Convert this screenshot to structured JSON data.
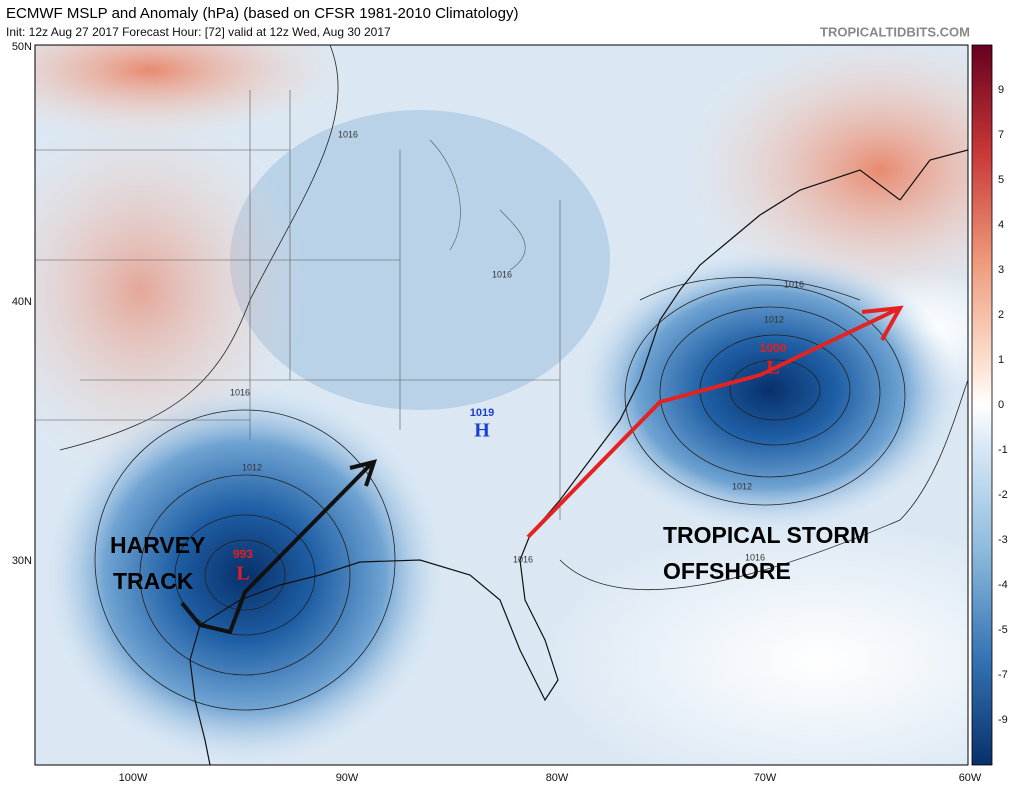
{
  "header": {
    "title": "ECMWF MSLP and Anomaly (hPa) (based on CFSR 1981-2010 Climatology)",
    "subtitle": "Init: 12z Aug 27 2017   Forecast Hour: [72]   valid at 12z Wed, Aug 30 2017",
    "site": "TROPICALTIDBITS.COM"
  },
  "map": {
    "latitude_labels": [
      "50N",
      "40N",
      "30N"
    ],
    "longitude_labels": [
      "100W",
      "90W",
      "80W",
      "70W",
      "60W"
    ],
    "colorbar_labels": [
      "9",
      "7",
      "5",
      "4",
      "3",
      "2",
      "1",
      "0",
      "-1",
      "-2",
      "-3",
      "-4",
      "-5",
      "-7",
      "-9"
    ],
    "isobar_labels": [
      "1016",
      "1016",
      "1016",
      "1012",
      "1016",
      "1012",
      "1016",
      "1012",
      "1016"
    ],
    "centers": [
      {
        "pressure": "1019",
        "label": "H"
      },
      {
        "pressure": "993",
        "label": "L"
      },
      {
        "pressure": "1000",
        "label": "L"
      }
    ],
    "annotations": [
      "HARVEY",
      "TRACK",
      "TROPICAL STORM",
      "OFFSHORE"
    ]
  }
}
